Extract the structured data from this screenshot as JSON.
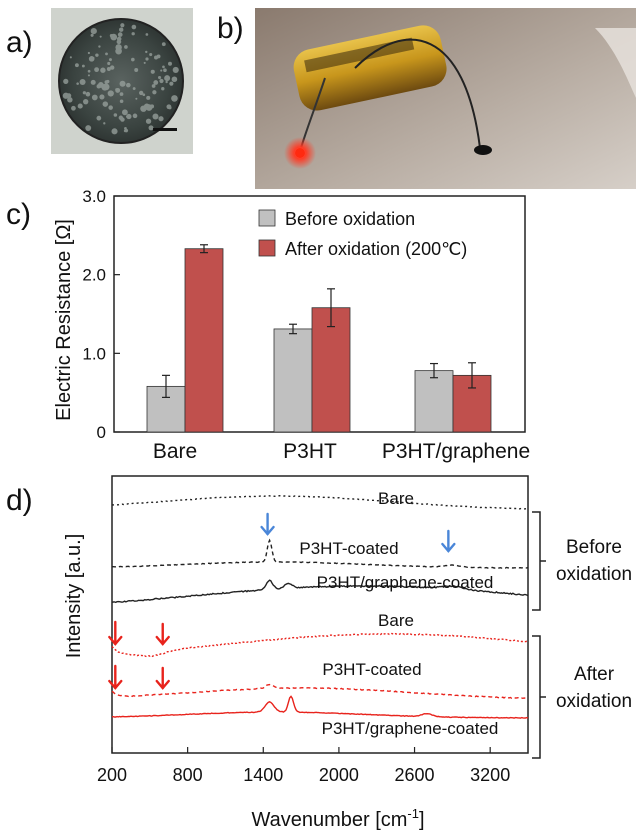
{
  "panels": {
    "a": "a)",
    "b": "b)",
    "c": "c)",
    "d": "d)"
  },
  "colors": {
    "before": "#c0c0c0",
    "after": "#c0504d",
    "arrow_blue": "#4a86d8",
    "arrow_red": "#e8231c",
    "before_trace": "#222222",
    "after_trace": "#e8231c"
  },
  "chart_data": [
    {
      "type": "bar",
      "panel": "c",
      "categories": [
        "Bare",
        "P3HT",
        "P3HT/graphene"
      ],
      "series": [
        {
          "name": "Before oxidation",
          "values": [
            0.58,
            1.31,
            0.78
          ],
          "errors": [
            0.14,
            0.06,
            0.09
          ]
        },
        {
          "name": "After oxidation (200℃)",
          "values": [
            2.33,
            1.58,
            0.72
          ],
          "errors": [
            0.05,
            0.24,
            0.16
          ]
        }
      ],
      "ylabel": "Electric Resistance [Ω]",
      "ylim": [
        0,
        3.0
      ],
      "yticks": [
        "0",
        "1.0",
        "2.0",
        "3.0"
      ],
      "legend": "top-right",
      "grid": false
    },
    {
      "type": "line",
      "panel": "d",
      "xlabel": "Wavenumber [cm",
      "xlabel_sup": "-1",
      "xlabel_end": "]",
      "ylabel": "Intensity [a.u.]",
      "xlim": [
        200,
        3500
      ],
      "xticks": [
        "200",
        "800",
        "1400",
        "2000",
        "2600",
        "3200"
      ],
      "series": [
        {
          "name": "Bare",
          "group": "before",
          "style": "dotted"
        },
        {
          "name": "P3HT-coated",
          "group": "before",
          "style": "dashed"
        },
        {
          "name": "P3HT/graphene-coated",
          "group": "before",
          "style": "solid"
        },
        {
          "name": "Bare",
          "group": "after",
          "style": "dotted"
        },
        {
          "name": "P3HT-coated",
          "group": "after",
          "style": "dashed"
        },
        {
          "name": "P3HT/graphene-coated",
          "group": "after",
          "style": "solid"
        }
      ],
      "groups": {
        "before": [
          "Before",
          "oxidation"
        ],
        "after": [
          "After",
          "oxidation"
        ]
      },
      "arrows_blue_x": [
        1450,
        2900
      ],
      "arrows_red_x": [
        250,
        650
      ]
    }
  ]
}
